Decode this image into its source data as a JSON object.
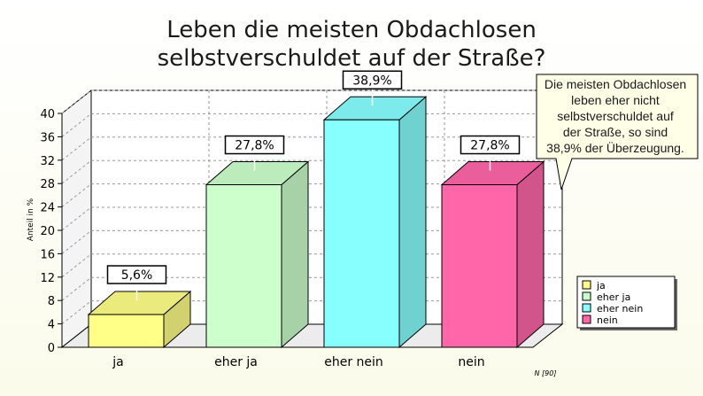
{
  "chart_data": {
    "type": "bar",
    "title_lines": [
      "Leben die meisten Obdachlosen",
      "selbstverschuldet auf der Straße?"
    ],
    "categories": [
      "ja",
      "eher ja",
      "eher nein",
      "nein"
    ],
    "values": [
      5.6,
      27.8,
      38.9,
      27.8
    ],
    "value_labels": [
      "5,6%",
      "27,8%",
      "38,9%",
      "27,8%"
    ],
    "colors": [
      "#ffff88",
      "#ccffcc",
      "#88ffff",
      "#ff66aa"
    ],
    "ylabel": "Anteil in %",
    "ylim": [
      0,
      40
    ],
    "yticks": [
      "0",
      "4",
      "8",
      "12",
      "16",
      "20",
      "24",
      "28",
      "32",
      "36",
      "40"
    ],
    "legend": [
      "ja",
      "eher ja",
      "eher nein",
      "nein"
    ],
    "legend_position": "bottom-right",
    "note": "N [90]",
    "callout_lines": [
      "Die meisten Obdachlosen",
      "leben eher nicht",
      "selbstverschuldet auf",
      "der Straße, so sind",
      "38,9% der Überzeugung."
    ]
  }
}
